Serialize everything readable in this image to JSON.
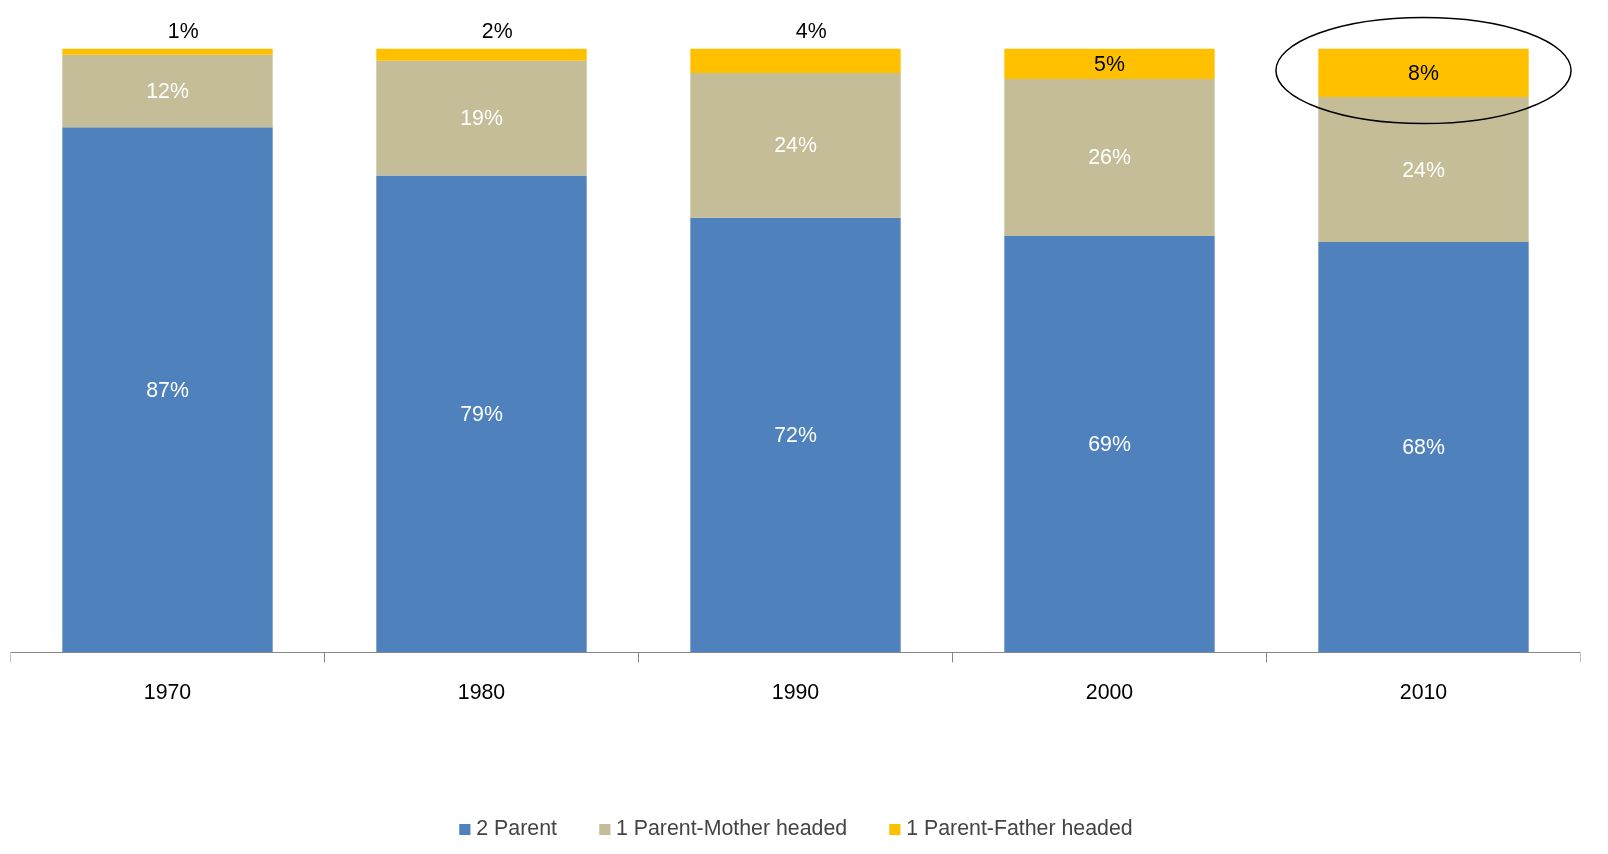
{
  "chart_data": {
    "type": "bar",
    "stacked": true,
    "categories": [
      "1970",
      "1980",
      "1990",
      "2000",
      "2010"
    ],
    "series": [
      {
        "name": "2 Parent",
        "color": "#4f81bd",
        "values": [
          87,
          79,
          72,
          69,
          68
        ],
        "value_labels": [
          "87%",
          "79%",
          "72%",
          "69%",
          "68%"
        ]
      },
      {
        "name": "1 Parent-Mother headed",
        "color": "#c4bd97",
        "values": [
          12,
          19,
          24,
          26,
          24
        ],
        "value_labels": [
          "12%",
          "19%",
          "24%",
          "26%",
          "24%"
        ]
      },
      {
        "name": "1 Parent-Father headed",
        "color": "#ffc000",
        "values": [
          1,
          2,
          4,
          5,
          8
        ],
        "value_labels": [
          "1%",
          "2%",
          "4%",
          "5%",
          "8%"
        ]
      }
    ],
    "grid": false,
    "legend": "bottom"
  }
}
